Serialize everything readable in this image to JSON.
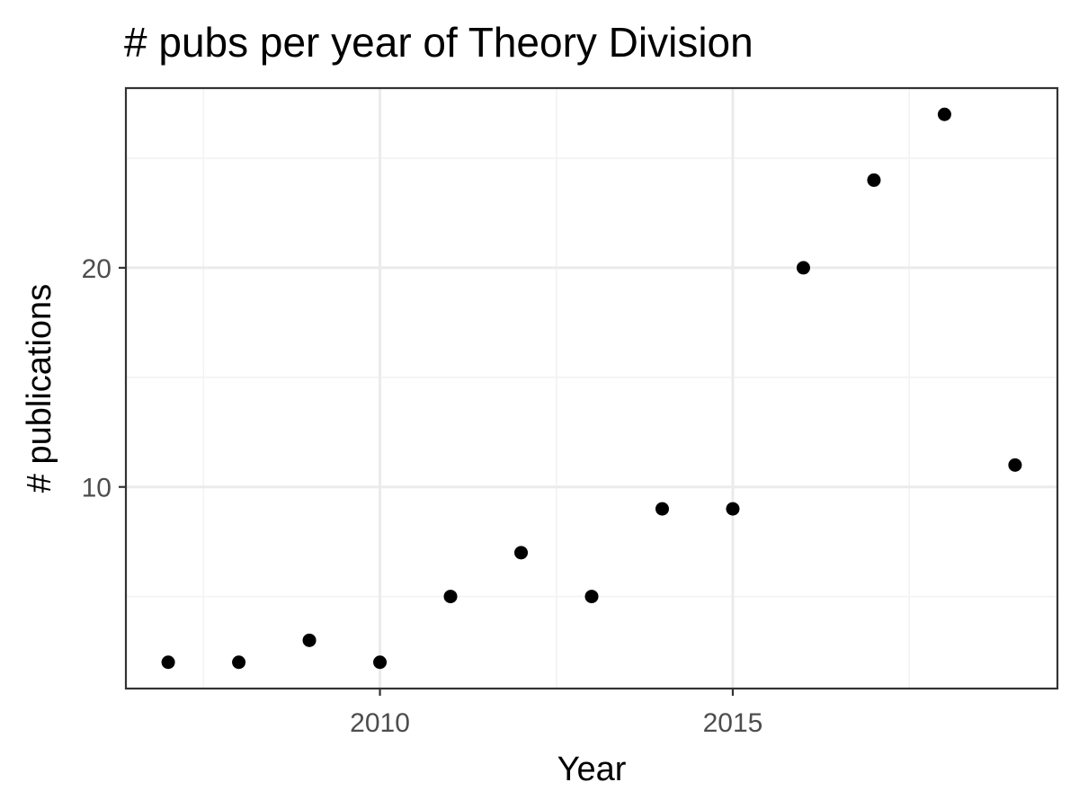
{
  "chart_data": {
    "type": "scatter",
    "title": "# pubs per year of Theory Division",
    "xlabel": "Year",
    "ylabel": "# publications",
    "x": [
      2007,
      2008,
      2009,
      2010,
      2011,
      2012,
      2013,
      2014,
      2015,
      2016,
      2017,
      2018,
      2019
    ],
    "y": [
      2,
      2,
      3,
      2,
      5,
      7,
      5,
      9,
      9,
      20,
      24,
      27,
      11
    ],
    "xlim": [
      2006.4,
      2019.6
    ],
    "ylim": [
      0.8,
      28.2
    ],
    "x_ticks": [
      2010,
      2015
    ],
    "x_tick_labels": [
      "2010",
      "2015"
    ],
    "x_minor_ticks": [
      2007.5,
      2012.5,
      2017.5
    ],
    "y_ticks": [
      10,
      20
    ],
    "y_tick_labels": [
      "10",
      "20"
    ],
    "y_minor_ticks": [
      5,
      15,
      25
    ],
    "grid": true,
    "legend": "none",
    "point_color": "#000000",
    "theme": "bw"
  }
}
